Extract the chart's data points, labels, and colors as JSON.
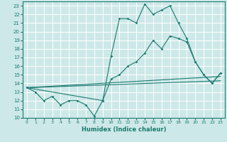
{
  "xlabel": "Humidex (Indice chaleur)",
  "bg_color": "#cde8e8",
  "grid_color": "#ffffff",
  "line_color": "#1a7a6e",
  "xlim": [
    -0.5,
    23.5
  ],
  "ylim": [
    10,
    23.5
  ],
  "xticks": [
    0,
    1,
    2,
    3,
    4,
    5,
    6,
    7,
    8,
    9,
    10,
    11,
    12,
    13,
    14,
    15,
    16,
    17,
    18,
    19,
    20,
    21,
    22,
    23
  ],
  "yticks": [
    10,
    11,
    12,
    13,
    14,
    15,
    16,
    17,
    18,
    19,
    20,
    21,
    22,
    23
  ],
  "series1_x": [
    0,
    1,
    2,
    3,
    4,
    5,
    6,
    7,
    8,
    9,
    10,
    11,
    12,
    13,
    14,
    15,
    16,
    17,
    18,
    19,
    20,
    21,
    22,
    23
  ],
  "series1_y": [
    13.5,
    13.0,
    12.0,
    12.5,
    11.5,
    12.0,
    12.0,
    11.5,
    10.2,
    12.0,
    17.2,
    21.5,
    21.5,
    21.0,
    23.2,
    22.0,
    22.5,
    23.0,
    21.0,
    19.2,
    16.5,
    15.0,
    14.0,
    15.2
  ],
  "series2_x": [
    0,
    9,
    10,
    11,
    12,
    13,
    14,
    15,
    16,
    17,
    18,
    19,
    20,
    21,
    22,
    23
  ],
  "series2_y": [
    13.5,
    12.0,
    14.5,
    15.0,
    16.0,
    16.5,
    17.5,
    19.0,
    18.0,
    19.5,
    19.2,
    18.8,
    16.5,
    15.0,
    14.0,
    15.2
  ],
  "series3_x": [
    0,
    23
  ],
  "series3_y": [
    13.5,
    14.3
  ],
  "series4_x": [
    0,
    23
  ],
  "series4_y": [
    13.5,
    14.8
  ]
}
